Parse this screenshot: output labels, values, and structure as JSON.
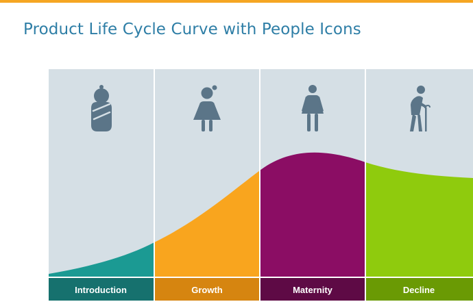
{
  "slide": {
    "title": "Product Life Cycle Curve with People Icons"
  },
  "stages": [
    {
      "label": "Introduction",
      "icon": "baby-icon",
      "fill_color": "#1b9a93",
      "bar_color": "#16716e"
    },
    {
      "label": "Growth",
      "icon": "girl-icon",
      "fill_color": "#f9a51e",
      "bar_color": "#d68510"
    },
    {
      "label": "Maternity",
      "icon": "woman-icon",
      "fill_color": "#8b0d64",
      "bar_color": "#5e0a45"
    },
    {
      "label": "Decline",
      "icon": "elderly-man-icon",
      "fill_color": "#8fcb0d",
      "bar_color": "#6a9a04"
    }
  ],
  "colors": {
    "accent": "#f5a623",
    "title": "#2e7ea6",
    "panel_background": "#d5dfe5",
    "icon": "#5b7588"
  }
}
